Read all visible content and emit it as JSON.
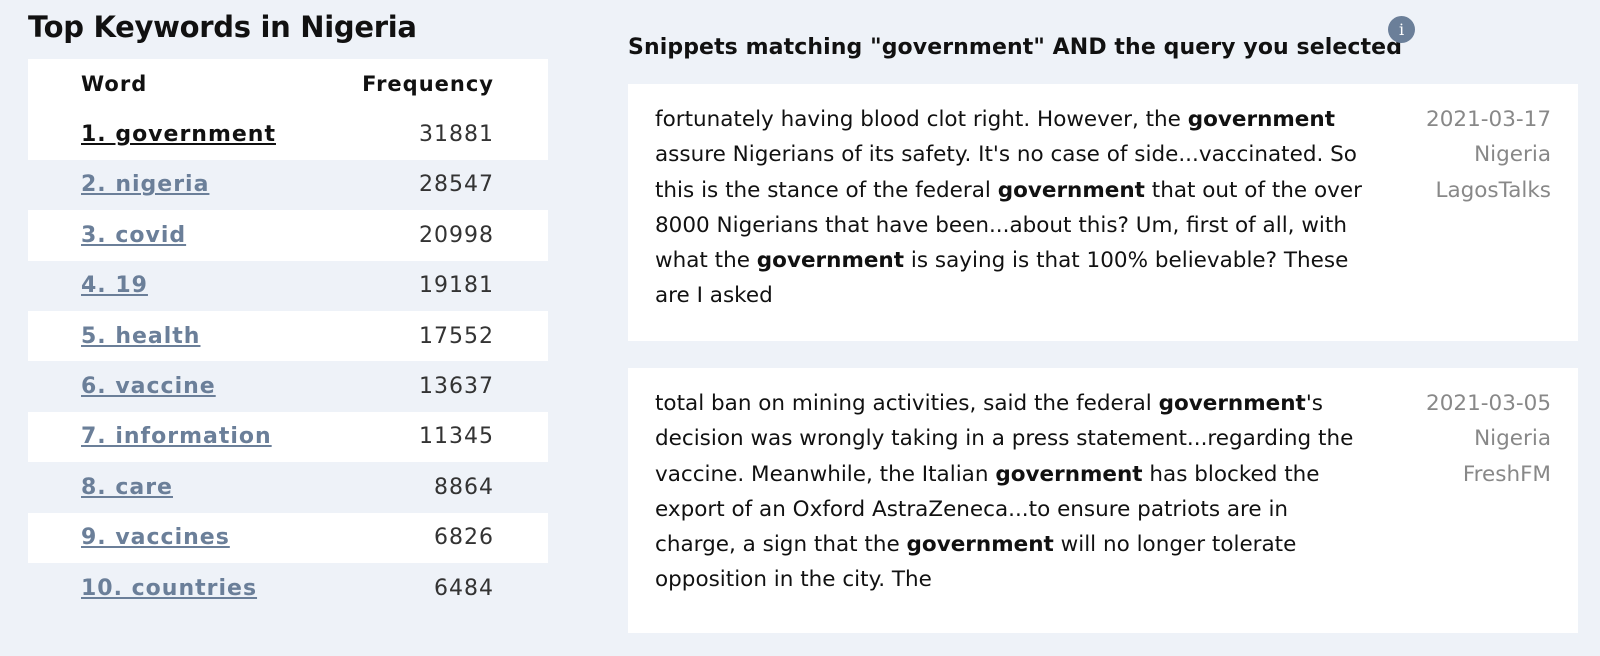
{
  "keywords_panel": {
    "title": "Top Keywords in Nigeria",
    "columns": {
      "word": "Word",
      "frequency": "Frequency"
    },
    "rows": [
      {
        "label": "1. government",
        "frequency": "31881"
      },
      {
        "label": "2. nigeria",
        "frequency": "28547"
      },
      {
        "label": "3. covid",
        "frequency": "20998"
      },
      {
        "label": "4. 19",
        "frequency": "19181"
      },
      {
        "label": "5. health",
        "frequency": "17552"
      },
      {
        "label": "6. vaccine",
        "frequency": "13637"
      },
      {
        "label": "7. information",
        "frequency": "11345"
      },
      {
        "label": "8. care",
        "frequency": "8864"
      },
      {
        "label": "9. vaccines",
        "frequency": "6826"
      },
      {
        "label": "10. countries",
        "frequency": "6484"
      }
    ],
    "selected_row": 0
  },
  "snippets_panel": {
    "heading": "Snippets matching \"government\" AND the query you selected",
    "info_icon": "info-icon",
    "highlight_term": "government",
    "cards": [
      {
        "parts": [
          {
            "text": "fortunately having blood clot right. However, the "
          },
          {
            "text": "government",
            "bold": true
          },
          {
            "text": " assure Nigerians of its safety. It's no case of side...vaccinated. So this is the stance of the federal "
          },
          {
            "text": "government",
            "bold": true
          },
          {
            "text": " that out of the over 8000 Nigerians that have been...about this? Um, first of all, with what the "
          },
          {
            "text": "government",
            "bold": true
          },
          {
            "text": " is saying is that 100% believable? These are I asked"
          }
        ],
        "date": "2021-03-17",
        "country": "Nigeria",
        "source": "LagosTalks"
      },
      {
        "parts": [
          {
            "text": "total ban on mining activities, said the federal "
          },
          {
            "text": "government",
            "bold": true
          },
          {
            "text": "'s decision was wrongly taking in a press statement...regarding the vaccine. Meanwhile, the Italian "
          },
          {
            "text": "government",
            "bold": true
          },
          {
            "text": " has blocked the export of an Oxford AstraZeneca...to ensure patriots are in charge, a sign that the "
          },
          {
            "text": "government",
            "bold": true
          },
          {
            "text": " will no longer tolerate opposition in the city. The"
          }
        ],
        "date": "2021-03-05",
        "country": "Nigeria",
        "source": "FreshFM"
      }
    ]
  },
  "colors": {
    "background": "#eef2f8",
    "link": "#6b7f99",
    "link_active": "#111111",
    "meta_text": "#888888",
    "info_icon_bg": "#6b7f99"
  }
}
